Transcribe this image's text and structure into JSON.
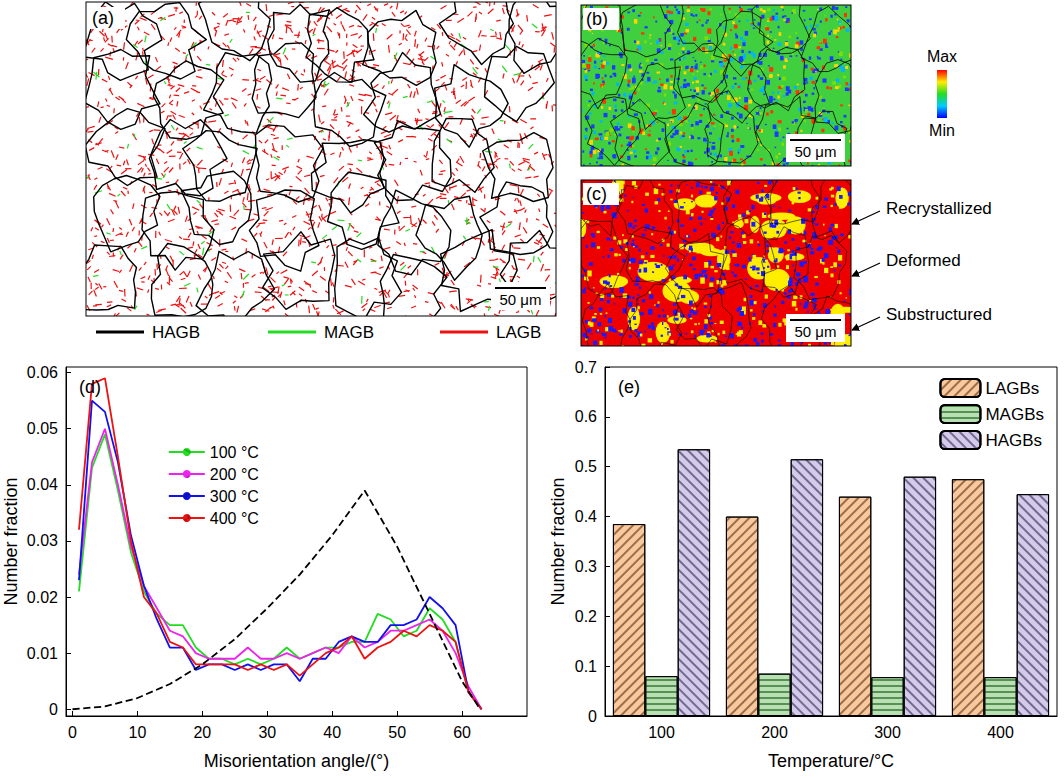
{
  "panels": [
    {
      "label": "(a)",
      "scale_bar": "50 μm",
      "legend": [
        {
          "name": "HAGB",
          "color": "#000000"
        },
        {
          "name": "MAGB",
          "color": "#22dd22"
        },
        {
          "name": "LAGB",
          "color": "#ee1111"
        }
      ]
    },
    {
      "label": "(b)",
      "scale_bar": "50 μm",
      "color_bar": {
        "max_label": "Max",
        "min_label": "Min"
      }
    },
    {
      "label": "(c)",
      "scale_bar": "50 μm",
      "classes": [
        "Recrystallized",
        "Deformed",
        "Substructured"
      ]
    }
  ],
  "chart_data": [
    {
      "type": "line",
      "title": "(d)",
      "x_label": "Misorientation angle/(°)",
      "y_label": "Number fraction",
      "x": [
        1,
        3,
        5,
        7,
        9,
        11,
        13,
        15,
        17,
        19,
        21,
        23,
        25,
        27,
        29,
        31,
        33,
        35,
        37,
        39,
        41,
        43,
        45,
        47,
        49,
        51,
        53,
        55,
        57,
        59,
        61,
        63
      ],
      "series": [
        {
          "name": "100 °C",
          "color": "#22dd22",
          "values": [
            0.021,
            0.043,
            0.049,
            0.039,
            0.028,
            0.021,
            0.017,
            0.015,
            0.015,
            0.011,
            0.009,
            0.009,
            0.008,
            0.009,
            0.008,
            0.009,
            0.011,
            0.009,
            0.01,
            0.011,
            0.011,
            0.012,
            0.012,
            0.017,
            0.016,
            0.013,
            0.014,
            0.018,
            0.016,
            0.012,
            0.003,
            0
          ]
        },
        {
          "name": "200 °C",
          "color": "#ee22ee",
          "values": [
            0.024,
            0.044,
            0.05,
            0.04,
            0.029,
            0.022,
            0.018,
            0.014,
            0.013,
            0.01,
            0.009,
            0.009,
            0.009,
            0.011,
            0.009,
            0.009,
            0.01,
            0.009,
            0.01,
            0.011,
            0.01,
            0.013,
            0.011,
            0.012,
            0.014,
            0.014,
            0.015,
            0.016,
            0.014,
            0.01,
            0.004,
            0
          ]
        },
        {
          "name": "300 °C",
          "color": "#1111ee",
          "values": [
            0.023,
            0.055,
            0.053,
            0.044,
            0.031,
            0.022,
            0.016,
            0.011,
            0.011,
            0.007,
            0.008,
            0.008,
            0.007,
            0.008,
            0.007,
            0.008,
            0.008,
            0.005,
            0.009,
            0.009,
            0.012,
            0.013,
            0.012,
            0.012,
            0.015,
            0.015,
            0.016,
            0.02,
            0.018,
            0.015,
            0.003,
            0
          ]
        },
        {
          "name": "400 °C",
          "color": "#ee1111",
          "values": [
            0.032,
            0.058,
            0.059,
            0.045,
            0.03,
            0.02,
            0.017,
            0.012,
            0.011,
            0.008,
            0.008,
            0.008,
            0.008,
            0.007,
            0.008,
            0.007,
            0.008,
            0.006,
            0.008,
            0.01,
            0.011,
            0.013,
            0.009,
            0.011,
            0.012,
            0.014,
            0.013,
            0.015,
            0.014,
            0.012,
            0.003,
            0
          ]
        },
        {
          "color": "#000000",
          "line_style": "dashed",
          "x": [
            0,
            5,
            10,
            15,
            20,
            25,
            30,
            35,
            40,
            45,
            50,
            55,
            60,
            62.8
          ],
          "values": [
            0,
            0.0005,
            0.002,
            0.0045,
            0.008,
            0.0125,
            0.018,
            0.024,
            0.031,
            0.039,
            0.029,
            0.017,
            0.005,
            0
          ]
        }
      ],
      "xlim": [
        -1,
        70
      ],
      "xticks": [
        0,
        10,
        20,
        30,
        40,
        50,
        60
      ],
      "ylim": [
        -0.0012,
        0.061
      ],
      "yticks": [
        0,
        0.01,
        0.02,
        0.03,
        0.04,
        0.05,
        0.06
      ],
      "legend": "upper center",
      "grid": false
    },
    {
      "type": "bar",
      "title": "(e)",
      "x_label": "Temperature/°C",
      "y_label": "Number fraction",
      "categories": [
        "100",
        "200",
        "300",
        "400"
      ],
      "series": [
        {
          "name": "LAGBs",
          "color": "#f9c99d",
          "values": [
            0.385,
            0.4,
            0.44,
            0.475
          ]
        },
        {
          "name": "MAGBs",
          "color": "#b9e0b3",
          "values": [
            0.08,
            0.085,
            0.078,
            0.078
          ]
        },
        {
          "name": "HAGBs",
          "color": "#d3cbe8",
          "values": [
            0.535,
            0.515,
            0.48,
            0.445
          ]
        }
      ],
      "ylim": [
        0,
        0.7
      ],
      "yticks": [
        0,
        0.1,
        0.2,
        0.3,
        0.4,
        0.5,
        0.6,
        0.7
      ],
      "legend": "upper right",
      "grid": false
    }
  ]
}
